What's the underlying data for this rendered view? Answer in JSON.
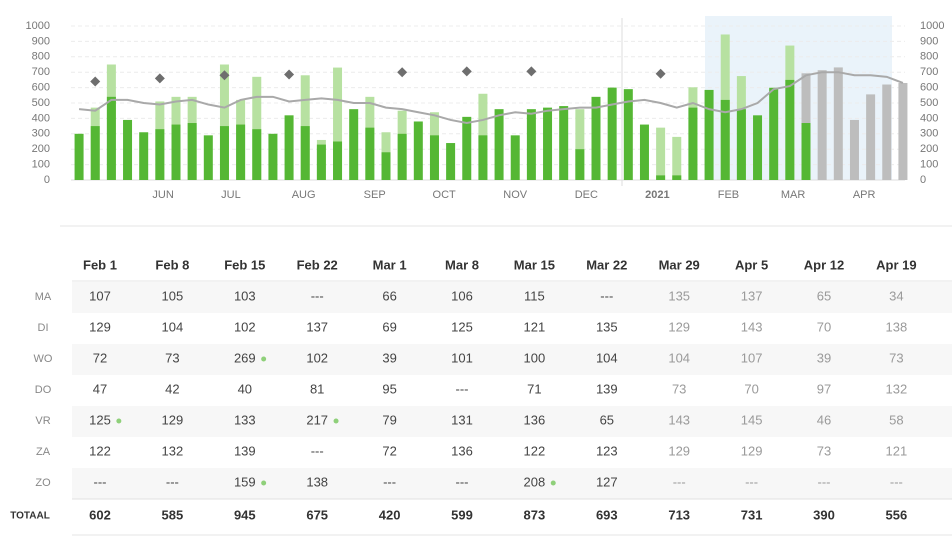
{
  "chart_data": {
    "type": "bar",
    "x": [
      0,
      1,
      2,
      3,
      4,
      5,
      6,
      7,
      8,
      9,
      10,
      11,
      12,
      13,
      14,
      15,
      16,
      17,
      18,
      19,
      20,
      21,
      22,
      23,
      24,
      25,
      26,
      27,
      28,
      29,
      30,
      31,
      32,
      33,
      34,
      35,
      36,
      37,
      38,
      39,
      40,
      41,
      42,
      43,
      44,
      45,
      46,
      47,
      48,
      49,
      50,
      51
    ],
    "xlim": [
      -0.5,
      51.5
    ],
    "xticks": [
      {
        "value": 5.2,
        "label": "JUN"
      },
      {
        "value": 9.4,
        "label": "JUL"
      },
      {
        "value": 13.9,
        "label": "AUG"
      },
      {
        "value": 18.3,
        "label": "SEP"
      },
      {
        "value": 22.6,
        "label": "OCT"
      },
      {
        "value": 27,
        "label": "NOV"
      },
      {
        "value": 31.4,
        "label": "DEC"
      },
      {
        "value": 35.8,
        "label": "2021",
        "bold": true
      },
      {
        "value": 40.2,
        "label": "FEB"
      },
      {
        "value": 44.2,
        "label": "MAR"
      },
      {
        "value": 48.6,
        "label": "APR"
      }
    ],
    "ylim": [
      0,
      1000
    ],
    "yticks": [
      0,
      100,
      200,
      300,
      400,
      500,
      600,
      700,
      800,
      900,
      1000
    ],
    "grid": true,
    "series": [
      {
        "color": "#bdbdbd",
        "values": [
          null,
          null,
          null,
          null,
          null,
          null,
          null,
          null,
          null,
          null,
          null,
          null,
          null,
          null,
          null,
          null,
          null,
          null,
          null,
          null,
          null,
          null,
          null,
          null,
          null,
          null,
          null,
          null,
          null,
          null,
          null,
          null,
          null,
          null,
          null,
          null,
          null,
          null,
          null,
          null,
          null,
          null,
          null,
          null,
          null,
          693,
          713,
          731,
          390,
          556,
          620,
          630
        ]
      },
      {
        "color": "#b7e1a1",
        "values": [
          null,
          470,
          750,
          null,
          null,
          510,
          540,
          540,
          null,
          750,
          520,
          670,
          null,
          null,
          680,
          260,
          730,
          null,
          540,
          310,
          450,
          null,
          440,
          null,
          null,
          560,
          null,
          null,
          null,
          null,
          null,
          460,
          null,
          null,
          null,
          null,
          340,
          280,
          602,
          null,
          945,
          675,
          null,
          null,
          873,
          null,
          null,
          null,
          null,
          null,
          null,
          null
        ]
      },
      {
        "color": "#55b734",
        "values": [
          300,
          350,
          540,
          390,
          310,
          330,
          360,
          370,
          290,
          350,
          360,
          330,
          300,
          420,
          350,
          230,
          250,
          460,
          340,
          180,
          300,
          380,
          290,
          240,
          410,
          290,
          460,
          290,
          460,
          470,
          480,
          200,
          540,
          600,
          590,
          360,
          30,
          30,
          470,
          585,
          520,
          460,
          420,
          599,
          650,
          370,
          null,
          null,
          null,
          null,
          null,
          null
        ]
      }
    ],
    "line": {
      "color": "#a9a9a9",
      "values": [
        460,
        450,
        520,
        520,
        500,
        490,
        510,
        520,
        490,
        470,
        520,
        540,
        540,
        510,
        520,
        530,
        520,
        500,
        500,
        470,
        460,
        440,
        420,
        390,
        370,
        390,
        420,
        440,
        430,
        450,
        460,
        470,
        470,
        490,
        510,
        520,
        500,
        470,
        500,
        460,
        440,
        460,
        500,
        590,
        610,
        680,
        700,
        700,
        680,
        680,
        670,
        630
      ]
    },
    "markers": {
      "color": "#6e6e6e",
      "x": [
        1,
        5,
        9,
        13,
        20,
        24,
        28,
        36
      ],
      "values": [
        640,
        660,
        680,
        685,
        700,
        705,
        705,
        690
      ]
    }
  },
  "table": {
    "columns": [
      "Feb 1",
      "Feb 8",
      "Feb 15",
      "Feb 22",
      "Mar 1",
      "Mar 8",
      "Mar 15",
      "Mar 22",
      "Mar 29",
      "Apr 5",
      "Apr 12",
      "Apr 19"
    ],
    "muted_from_column": 8,
    "rows": [
      {
        "label": "MA",
        "cells": [
          107,
          105,
          103,
          "---",
          66,
          106,
          115,
          "---",
          135,
          137,
          65,
          34
        ]
      },
      {
        "label": "DI",
        "cells": [
          129,
          104,
          102,
          137,
          69,
          125,
          121,
          135,
          129,
          143,
          70,
          138
        ]
      },
      {
        "label": "WO",
        "cells": [
          72,
          73,
          269,
          102,
          39,
          101,
          100,
          104,
          104,
          107,
          39,
          73
        ]
      },
      {
        "label": "DO",
        "cells": [
          47,
          42,
          40,
          81,
          95,
          "---",
          71,
          139,
          73,
          70,
          97,
          132
        ]
      },
      {
        "label": "VR",
        "cells": [
          125,
          129,
          133,
          217,
          79,
          131,
          136,
          65,
          143,
          145,
          46,
          58
        ]
      },
      {
        "label": "ZA",
        "cells": [
          122,
          132,
          139,
          "---",
          72,
          136,
          122,
          123,
          129,
          129,
          73,
          121
        ]
      },
      {
        "label": "ZO",
        "cells": [
          "---",
          "---",
          159,
          138,
          "---",
          "---",
          208,
          127,
          "---",
          "---",
          "---",
          "---"
        ]
      }
    ],
    "marked": [
      [
        2,
        2
      ],
      [
        4,
        0
      ],
      [
        4,
        3
      ],
      [
        6,
        2
      ],
      [
        6,
        6
      ]
    ],
    "total": {
      "label": "TOTAAL",
      "cells": [
        602,
        585,
        945,
        675,
        420,
        599,
        873,
        693,
        713,
        731,
        390,
        556
      ]
    }
  }
}
